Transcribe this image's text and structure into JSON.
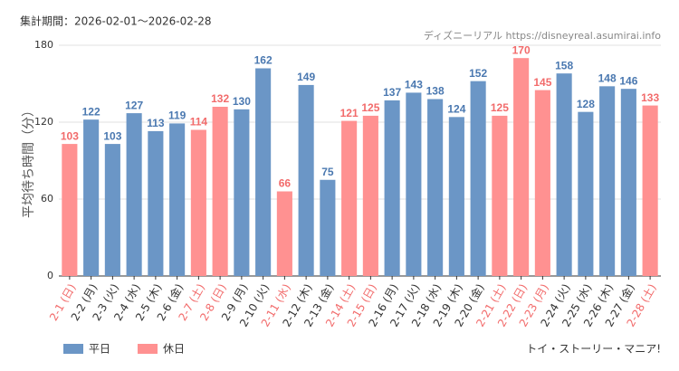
{
  "chart_data": {
    "type": "bar",
    "title": "集計期間：2026-02-01～2026-02-28",
    "source": "ディズニーリアル https://disneyreal.asumirai.info",
    "y_label": "平均待ち時間（分）",
    "annotation": "トイ・ストーリー・マニア!",
    "categories": [
      "2-1 (日)",
      "2-2 (月)",
      "2-3 (火)",
      "2-4 (水)",
      "2-5 (木)",
      "2-6 (金)",
      "2-7 (土)",
      "2-8 (日)",
      "2-9 (月)",
      "2-10 (火)",
      "2-11 (水)",
      "2-12 (木)",
      "2-13 (金)",
      "2-14 (土)",
      "2-15 (日)",
      "2-16 (月)",
      "2-17 (火)",
      "2-18 (水)",
      "2-19 (木)",
      "2-20 (金)",
      "2-21 (土)",
      "2-22 (日)",
      "2-23 (月)",
      "2-24 (火)",
      "2-25 (水)",
      "2-26 (木)",
      "2-27 (金)",
      "2-28 (土)"
    ],
    "series": [
      {
        "name": "平日",
        "color": "#6b96c6",
        "label_color": "#4a78b0",
        "values": [
          null,
          122,
          103,
          127,
          113,
          119,
          null,
          null,
          130,
          162,
          null,
          149,
          75,
          null,
          null,
          137,
          143,
          138,
          124,
          152,
          null,
          null,
          null,
          158,
          128,
          148,
          146,
          null
        ]
      },
      {
        "name": "休日",
        "color": "#ff9191",
        "label_color": "#f26b6b",
        "values": [
          103,
          null,
          null,
          null,
          null,
          null,
          114,
          132,
          null,
          null,
          66,
          null,
          null,
          121,
          125,
          null,
          null,
          null,
          null,
          null,
          125,
          170,
          145,
          null,
          null,
          null,
          null,
          133
        ]
      }
    ],
    "ylim": [
      0,
      180
    ],
    "yticks": [
      0,
      60,
      120,
      180
    ],
    "grid": true
  }
}
